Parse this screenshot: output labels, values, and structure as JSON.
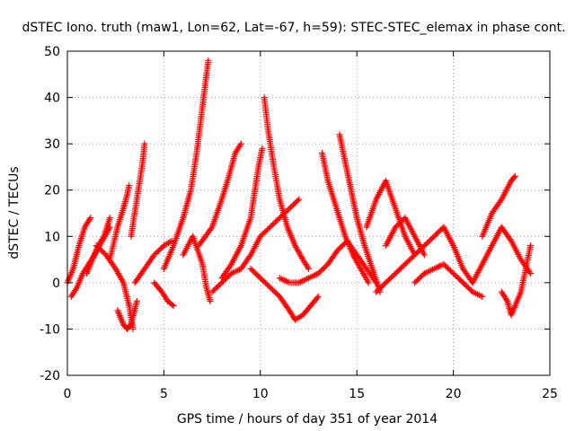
{
  "chart_data": {
    "type": "scatter",
    "title": "dSTEC Iono. truth (maw1, Lon=62, Lat=-67, h=59): STEC-STEC_elemax in phase cont.",
    "xlabel": "GPS time / hours of day 351 of year 2014",
    "ylabel": "dSTEC  / TECUs",
    "xlim": [
      0,
      25
    ],
    "ylim": [
      -20,
      50
    ],
    "xticks": [
      0,
      5,
      10,
      15,
      20,
      25
    ],
    "yticks": [
      -20,
      -10,
      0,
      10,
      20,
      30,
      40,
      50
    ],
    "grid": true,
    "marker": "plus",
    "color": "#ff0000",
    "series": [
      {
        "x": [
          0.0,
          0.3,
          0.6,
          0.9,
          1.2
        ],
        "y": [
          0,
          3,
          8,
          12,
          14
        ]
      },
      {
        "x": [
          0.2,
          0.5,
          0.8,
          1.1,
          1.4,
          1.8,
          2.2
        ],
        "y": [
          -3,
          -1,
          2,
          4,
          6,
          9,
          12
        ]
      },
      {
        "x": [
          1.0,
          1.3,
          1.6,
          1.9,
          2.2
        ],
        "y": [
          2,
          5,
          8,
          10,
          14
        ]
      },
      {
        "x": [
          1.5,
          2.0,
          2.5,
          2.9,
          3.2,
          3.4
        ],
        "y": [
          8,
          6,
          3,
          0,
          -5,
          -10
        ]
      },
      {
        "x": [
          2.6,
          2.9,
          3.1,
          3.3,
          3.6
        ],
        "y": [
          -6,
          -9,
          -10,
          -9,
          -4
        ]
      },
      {
        "x": [
          2.2,
          2.6,
          2.9,
          3.1,
          3.2
        ],
        "y": [
          5,
          12,
          16,
          19,
          21
        ]
      },
      {
        "x": [
          3.3,
          3.6,
          3.9,
          4.0
        ],
        "y": [
          10,
          18,
          26,
          30
        ]
      },
      {
        "x": [
          3.5,
          4.0,
          4.5,
          5.0,
          5.4
        ],
        "y": [
          0,
          3,
          6,
          8,
          9
        ]
      },
      {
        "x": [
          4.5,
          4.9,
          5.2,
          5.5
        ],
        "y": [
          0,
          -2,
          -4,
          -5
        ]
      },
      {
        "x": [
          5.0,
          5.5,
          6.0,
          6.4,
          6.7,
          7.0,
          7.3
        ],
        "y": [
          3,
          8,
          14,
          20,
          28,
          38,
          48
        ]
      },
      {
        "x": [
          6.0,
          6.5,
          7.0,
          7.2,
          7.4
        ],
        "y": [
          6,
          10,
          4,
          -1,
          -4
        ]
      },
      {
        "x": [
          6.8,
          7.5,
          8.0,
          8.3,
          8.7,
          9.0
        ],
        "y": [
          8,
          12,
          18,
          22,
          28,
          30
        ]
      },
      {
        "x": [
          8.0,
          8.5,
          9.0,
          9.5,
          9.9,
          10.1
        ],
        "y": [
          1,
          4,
          8,
          14,
          25,
          29
        ]
      },
      {
        "x": [
          7.5,
          8.0,
          8.5,
          9.0,
          9.5,
          10.0,
          10.5,
          11.0,
          11.5,
          12.0
        ],
        "y": [
          -2,
          0,
          2,
          3,
          6,
          10,
          12,
          14,
          16,
          18
        ]
      },
      {
        "x": [
          10.2,
          10.4,
          10.7,
          11.0,
          11.4,
          11.8,
          12.2,
          12.5
        ],
        "y": [
          40,
          33,
          25,
          18,
          12,
          8,
          5,
          3
        ]
      },
      {
        "x": [
          9.5,
          10.0,
          10.5,
          11.0,
          11.5,
          11.8,
          12.2,
          12.6,
          13.0
        ],
        "y": [
          3,
          1,
          -1,
          -3,
          -6,
          -8,
          -7,
          -5,
          -3
        ]
      },
      {
        "x": [
          11.0,
          11.5,
          12.0,
          12.5,
          13.0,
          13.5,
          14.0,
          14.5,
          15.0,
          15.5,
          16.0
        ],
        "y": [
          1,
          0,
          0,
          1,
          2,
          4,
          7,
          9,
          6,
          3,
          0
        ]
      },
      {
        "x": [
          13.2,
          13.5,
          13.8,
          14.1,
          14.4,
          14.8,
          15.2,
          15.6
        ],
        "y": [
          28,
          22,
          18,
          14,
          10,
          6,
          3,
          0
        ]
      },
      {
        "x": [
          14.1,
          14.4,
          14.7,
          15.0,
          15.4,
          15.8,
          16.2
        ],
        "y": [
          32,
          26,
          20,
          14,
          8,
          3,
          -2
        ]
      },
      {
        "x": [
          15.5,
          16.0,
          16.5,
          17.0,
          17.5,
          18.0
        ],
        "y": [
          12,
          18,
          22,
          16,
          10,
          6
        ]
      },
      {
        "x": [
          16.5,
          17.0,
          17.5,
          18.0,
          18.5
        ],
        "y": [
          8,
          12,
          14,
          10,
          6
        ]
      },
      {
        "x": [
          16.0,
          16.5,
          17.0,
          17.5,
          18.0,
          18.5,
          19.0,
          19.5,
          20.0,
          20.5,
          21.0
        ],
        "y": [
          -2,
          0,
          2,
          4,
          6,
          8,
          10,
          12,
          8,
          3,
          0
        ]
      },
      {
        "x": [
          18.0,
          18.5,
          19.0,
          19.5,
          20.0,
          20.5,
          21.0,
          21.5
        ],
        "y": [
          0,
          2,
          3,
          4,
          2,
          0,
          -2,
          -3
        ]
      },
      {
        "x": [
          21.5,
          22.0,
          22.5,
          23.0,
          23.2
        ],
        "y": [
          10,
          15,
          18,
          22,
          23
        ]
      },
      {
        "x": [
          21.0,
          21.5,
          22.0,
          22.5,
          23.0,
          23.5,
          24.0
        ],
        "y": [
          0,
          4,
          8,
          12,
          9,
          5,
          2
        ]
      },
      {
        "x": [
          22.5,
          22.8,
          23.0,
          23.2,
          23.5,
          24.0
        ],
        "y": [
          -2,
          -4,
          -7,
          -5,
          -2,
          8
        ]
      }
    ]
  }
}
